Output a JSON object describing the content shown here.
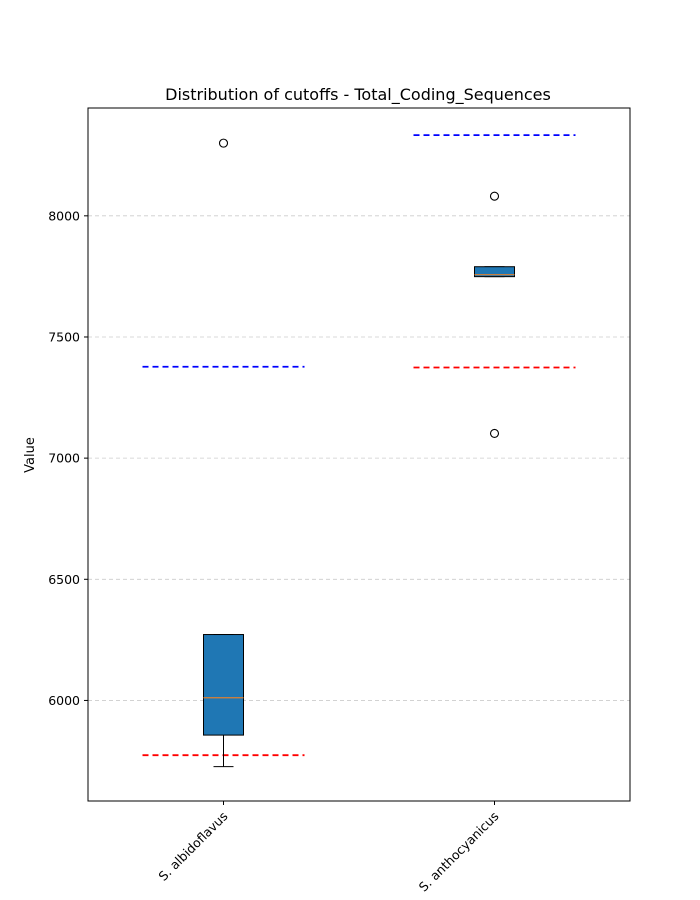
{
  "chart_data": {
    "type": "box",
    "title": "Distribution of cutoffs - Total_Coding_Sequences",
    "xlabel": "",
    "ylabel": "Value",
    "ylim": [
      5585,
      8445
    ],
    "yticks": [
      6000,
      6500,
      7000,
      7500,
      8000
    ],
    "grid": "y-dashed",
    "categories": [
      "S. albidoflavus",
      "S. anthocyanicus"
    ],
    "boxes": [
      {
        "category": "S. albidoflavus",
        "whisker_low": 5727,
        "q1": 5857,
        "median": 6011,
        "q3": 6272,
        "whisker_high": 6272,
        "outliers": [
          8300
        ],
        "cutoff_upper": 7377,
        "cutoff_lower": 5774
      },
      {
        "category": "S. anthocyanicus",
        "whisker_low": 7749,
        "q1": 7749,
        "median": 7757,
        "q3": 7790,
        "whisker_high": 7790,
        "outliers": [
          8081,
          7102
        ],
        "cutoff_upper": 8333,
        "cutoff_lower": 7374
      }
    ],
    "colors": {
      "box_fill": "#1f77b4",
      "median": "#e08030",
      "cutoff_upper": "#0000ff",
      "cutoff_lower": "#ff0000",
      "grid": "#cccccc"
    }
  }
}
